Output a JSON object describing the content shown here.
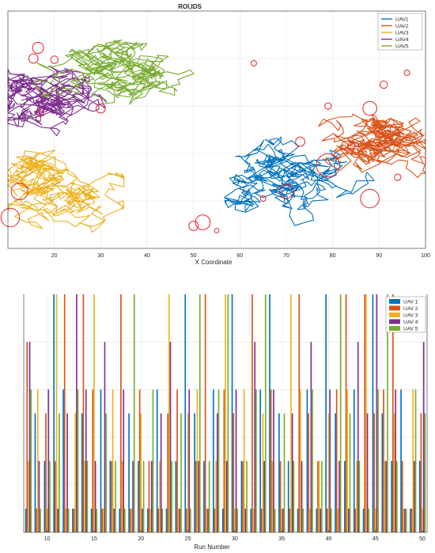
{
  "colors": {
    "UAV1": "#0072BD",
    "UAV2": "#D95319",
    "UAV3": "#EDB120",
    "UAV4": "#7E2F8E",
    "UAV5": "#77AC30",
    "roi": "#E8202A",
    "grid": "#DFDFDF",
    "axis": "#262626"
  },
  "chart_data": [
    {
      "type": "line",
      "title": "ROI,IDS",
      "xlabel": "X Coordinate",
      "ylabel": "",
      "xlim": [
        10,
        100
      ],
      "ylim": [
        0,
        100
      ],
      "xticks": [
        20,
        30,
        40,
        50,
        60,
        70,
        80,
        90,
        100
      ],
      "grid": true,
      "legend": {
        "placement": "top-right",
        "entries": [
          "UAV1",
          "UAV2",
          "UAV3",
          "UAV4",
          "UAV5"
        ]
      },
      "series": [
        {
          "name": "UAV1",
          "region": {
            "cx": 68,
            "cy": 30,
            "sx": 22,
            "sy": 18
          }
        },
        {
          "name": "UAV2",
          "region": {
            "cx": 89,
            "cy": 48,
            "sx": 10,
            "sy": 38
          }
        },
        {
          "name": "UAV3",
          "region": {
            "cx": 19,
            "cy": 22,
            "sx": 10,
            "sy": 18
          }
        },
        {
          "name": "UAV4",
          "region": {
            "cx": 18,
            "cy": 60,
            "sx": 10,
            "sy": 14
          }
        },
        {
          "name": "UAV5",
          "region": {
            "cx": 35,
            "cy": 75,
            "sx": 26,
            "sy": 20
          }
        }
      ],
      "roi_circles": [
        {
          "x": 16.5,
          "y": 84.5,
          "r": 1.2
        },
        {
          "x": 15.5,
          "y": 80,
          "r": 1.0
        },
        {
          "x": 20,
          "y": 79.5,
          "r": 0.8
        },
        {
          "x": 17,
          "y": 57,
          "r": 0.7
        },
        {
          "x": 30,
          "y": 59,
          "r": 1.0
        },
        {
          "x": 12.5,
          "y": 24,
          "r": 1.8
        },
        {
          "x": 10.5,
          "y": 13,
          "r": 2.0
        },
        {
          "x": 52,
          "y": 11,
          "r": 1.6
        },
        {
          "x": 50,
          "y": 9.5,
          "r": 1.0
        },
        {
          "x": 55,
          "y": 7.5,
          "r": 0.5
        },
        {
          "x": 65,
          "y": 21,
          "r": 0.6
        },
        {
          "x": 70,
          "y": 24,
          "r": 1.5
        },
        {
          "x": 73,
          "y": 45,
          "r": 1.0
        },
        {
          "x": 63,
          "y": 78,
          "r": 0.6
        },
        {
          "x": 79,
          "y": 60,
          "r": 0.7
        },
        {
          "x": 79,
          "y": 35,
          "r": 2.5
        },
        {
          "x": 88,
          "y": 59,
          "r": 1.5
        },
        {
          "x": 88,
          "y": 21,
          "r": 2.0
        },
        {
          "x": 91,
          "y": 69,
          "r": 0.8
        },
        {
          "x": 96,
          "y": 74,
          "r": 0.6
        },
        {
          "x": 94,
          "y": 30,
          "r": 0.7
        },
        {
          "x": 84,
          "y": 43,
          "r": 0.8
        }
      ]
    },
    {
      "type": "bar",
      "title": "",
      "xlabel": "Run Number",
      "ylabel": "",
      "xlim": [
        7.5,
        50.5
      ],
      "ylim": [
        0,
        10
      ],
      "xticks": [
        10,
        15,
        20,
        25,
        30,
        35,
        40,
        45,
        50
      ],
      "grid": true,
      "legend": {
        "placement": "top-right",
        "entries": [
          "UAV 1",
          "UAV 2",
          "UAV 3",
          "UAV 4",
          "UAV 5"
        ]
      },
      "categories": [
        8,
        9,
        10,
        11,
        12,
        13,
        14,
        15,
        16,
        17,
        18,
        19,
        20,
        21,
        22,
        23,
        24,
        25,
        26,
        27,
        28,
        29,
        30,
        31,
        32,
        33,
        34,
        35,
        36,
        37,
        38,
        39,
        40,
        41,
        42,
        43,
        44,
        45,
        46,
        47,
        48,
        49,
        50
      ],
      "series": [
        {
          "name": "UAV 1",
          "values": [
            1,
            5,
            3,
            10,
            6,
            1,
            5,
            1,
            6,
            3,
            1,
            5,
            3,
            1,
            6,
            1,
            3,
            10,
            5,
            3,
            6,
            1,
            10,
            3,
            1,
            6,
            10,
            5,
            3,
            1,
            6,
            1,
            10,
            5,
            3,
            6,
            1,
            10,
            5,
            3,
            6,
            1,
            3
          ]
        },
        {
          "name": "UAV 2",
          "values": [
            8,
            1,
            5,
            3,
            10,
            1,
            10,
            6,
            1,
            3,
            10,
            1,
            6,
            3,
            1,
            5,
            6,
            1,
            3,
            10,
            1,
            6,
            5,
            3,
            10,
            1,
            6,
            3,
            1,
            10,
            5,
            3,
            1,
            6,
            10,
            1,
            10,
            5,
            6,
            10,
            3,
            1,
            5
          ]
        },
        {
          "name": "UAV 3",
          "values": [
            3,
            6,
            1,
            10,
            1,
            5,
            3,
            10,
            1,
            6,
            3,
            1,
            5,
            1,
            3,
            10,
            1,
            5,
            6,
            1,
            3,
            10,
            1,
            6,
            1,
            5,
            3,
            1,
            10,
            6,
            1,
            3,
            5,
            1,
            6,
            3,
            10,
            1,
            3,
            5,
            1,
            6,
            1
          ]
        },
        {
          "name": "UAV 4",
          "values": [
            8,
            3,
            6,
            1,
            5,
            10,
            6,
            3,
            8,
            1,
            6,
            3,
            1,
            3,
            5,
            8,
            1,
            6,
            3,
            1,
            5,
            3,
            6,
            1,
            8,
            3,
            6,
            1,
            5,
            3,
            8,
            1,
            6,
            3,
            1,
            8,
            5,
            10,
            3,
            6,
            1,
            3,
            8
          ]
        },
        {
          "name": "UAV 5",
          "values": [
            6,
            1,
            3,
            5,
            1,
            6,
            3,
            1,
            5,
            3,
            1,
            10,
            3,
            6,
            1,
            3,
            5,
            1,
            10,
            3,
            6,
            10,
            1,
            3,
            6,
            10,
            1,
            5,
            3,
            1,
            6,
            3,
            1,
            10,
            5,
            3,
            1,
            6,
            10,
            3,
            1,
            6,
            5
          ]
        }
      ]
    }
  ]
}
